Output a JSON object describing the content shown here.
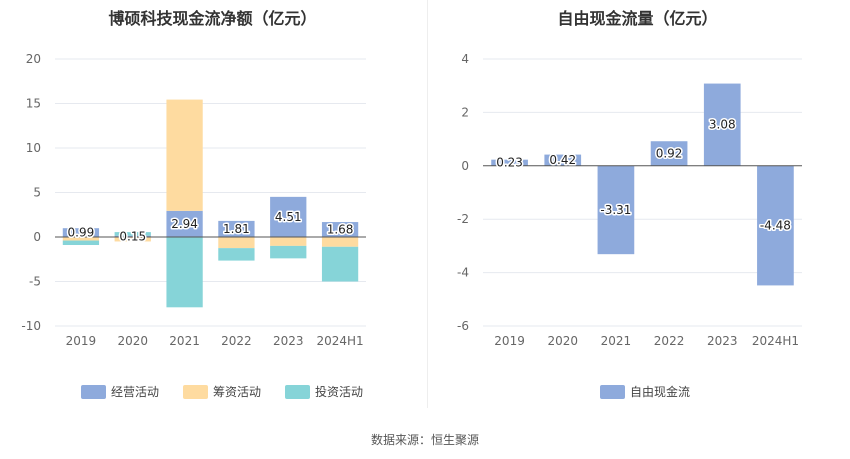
{
  "footer": {
    "source": "数据来源：恒生聚源"
  },
  "chart_data": [
    {
      "type": "bar",
      "title": "博硕科技现金流净额（亿元）",
      "stacked": true,
      "categories": [
        "2019",
        "2020",
        "2021",
        "2022",
        "2023",
        "2024H1"
      ],
      "ylim": [
        -10,
        20
      ],
      "yticks": [
        20,
        15,
        10,
        5,
        0,
        -5,
        -10
      ],
      "grid": true,
      "legend_position": "bottom",
      "series": [
        {
          "name": "经营活动",
          "color": "#8eaadc",
          "values": [
            0.99,
            0.15,
            2.94,
            1.81,
            4.51,
            1.68
          ],
          "labels": [
            "0.99",
            "0.15",
            "2.94",
            "1.81",
            "4.51",
            "1.68"
          ]
        },
        {
          "name": "筹资活动",
          "color": "#fedba0",
          "values": [
            -0.4,
            -0.5,
            12.5,
            -1.25,
            -1.0,
            -1.1
          ]
        },
        {
          "name": "投资活动",
          "color": "#86d4d8",
          "values": [
            -0.5,
            0.4,
            -7.9,
            -1.4,
            -1.4,
            -3.9
          ]
        }
      ]
    },
    {
      "type": "bar",
      "title": "自由现金流量（亿元）",
      "categories": [
        "2019",
        "2020",
        "2021",
        "2022",
        "2023",
        "2024H1"
      ],
      "ylim": [
        -6,
        4
      ],
      "yticks": [
        4,
        2,
        0,
        -2,
        -4,
        -6
      ],
      "grid": true,
      "legend_position": "bottom",
      "series": [
        {
          "name": "自由现金流",
          "color": "#8eaadc",
          "values": [
            0.23,
            0.42,
            -3.31,
            0.92,
            3.08,
            -4.48
          ],
          "labels": [
            "0.23",
            "0.42",
            "-3.31",
            "0.92",
            "3.08",
            "-4.48"
          ]
        }
      ]
    }
  ]
}
